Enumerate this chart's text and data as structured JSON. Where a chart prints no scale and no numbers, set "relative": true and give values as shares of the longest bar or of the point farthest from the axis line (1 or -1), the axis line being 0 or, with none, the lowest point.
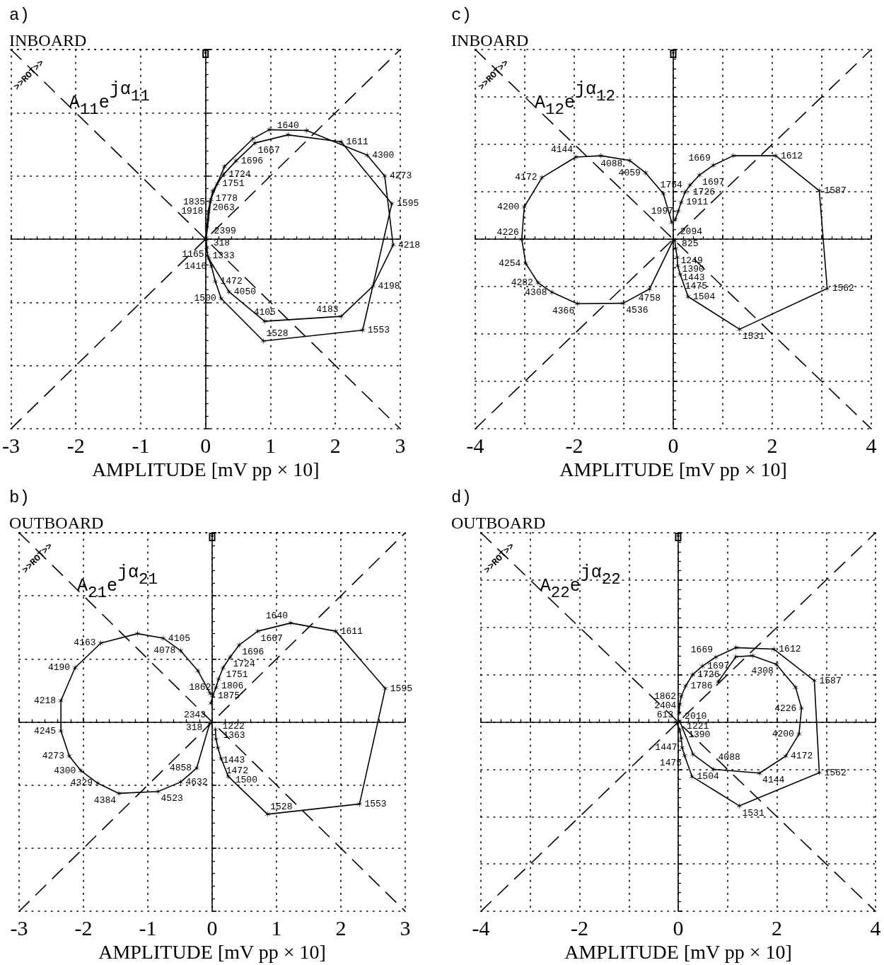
{
  "chart_data": [
    {
      "type": "line",
      "title": "a)",
      "subtitle": "INBOARD",
      "xlabel": "AMPLITUDE [mV pp × 10]",
      "xlim": [
        -3,
        3
      ],
      "xticks": [
        -3,
        -2,
        -1,
        0,
        1,
        2,
        3
      ],
      "relative": true,
      "tick_labels": "x",
      "grid": true,
      "marker": "cross",
      "series": [
        {
          "color": "#000000",
          "x": [
            0.01,
            0.02,
            0.03,
            0.09,
            0.15,
            0.24,
            0.89,
            2.42,
            2.87,
            2.09,
            1.27,
            0.76,
            0.47,
            0.28,
            0.18,
            0.11,
            0.07,
            0.04,
            0.03,
            0.02
          ],
          "values": [
            -0.003,
            -0.043,
            -0.087,
            -0.143,
            -0.223,
            -0.313,
            -0.537,
            -0.48,
            0.187,
            0.513,
            0.55,
            0.507,
            0.413,
            0.343,
            0.293,
            0.253,
            0.197,
            0.147,
            0.103,
            0.063
          ]
        },
        {
          "color": "#000000",
          "x": [
            0.01,
            0.08,
            0.29,
            0.73,
            0.98,
            1.56,
            2.49,
            2.76,
            2.89,
            2.58,
            2.09,
            0.91,
            0.36,
            0.05
          ],
          "values": [
            0.007,
            0.21,
            0.383,
            0.53,
            0.577,
            0.573,
            0.443,
            0.333,
            -0.03,
            -0.247,
            -0.407,
            -0.433,
            -0.277,
            -0.103
          ]
        },
        {
          "color": "#000000",
          "x": [
            -3,
            3
          ],
          "values": [
            -1,
            1
          ],
          "line_style": "dashed",
          "marker": "none"
        },
        {
          "color": "#000000",
          "x": [
            -3,
            3
          ],
          "values": [
            1,
            -1
          ],
          "line_style": "dashed",
          "marker": "none"
        }
      ],
      "annotations": [
        "A$_{11}$e$^{jα}$$_{11}$",
        ">>ROT>>",
        {
          "text": "318",
          "x": 0.01,
          "y": -0.003
        },
        {
          "text": "1165",
          "x": 0.02,
          "y": -0.043
        },
        {
          "text": "1333",
          "x": 0.03,
          "y": -0.087
        },
        {
          "text": "1416",
          "x": 0.09,
          "y": -0.143
        },
        {
          "text": "1472",
          "x": 0.15,
          "y": -0.223
        },
        {
          "text": "1500",
          "x": 0.24,
          "y": -0.313
        },
        {
          "text": "1528",
          "x": 0.89,
          "y": -0.537
        },
        {
          "text": "1553",
          "x": 2.42,
          "y": -0.48
        },
        {
          "text": "1595",
          "x": 2.87,
          "y": 0.187
        },
        {
          "text": "1611",
          "x": 2.09,
          "y": 0.513
        },
        {
          "text": "1640",
          "x": 1.27,
          "y": 0.55
        },
        {
          "text": "1667",
          "x": 0.76,
          "y": 0.507
        },
        {
          "text": "1696",
          "x": 0.47,
          "y": 0.413
        },
        {
          "text": "1724",
          "x": 0.28,
          "y": 0.343
        },
        {
          "text": "1751",
          "x": 0.18,
          "y": 0.293
        },
        {
          "text": "1778",
          "x": 0.11,
          "y": 0.253
        },
        {
          "text": "1835",
          "x": 0.07,
          "y": 0.197
        },
        {
          "text": "1918",
          "x": 0.04,
          "y": 0.147
        },
        {
          "text": "2063",
          "x": 0.03,
          "y": 0.103
        },
        {
          "text": "2399",
          "x": 0.02,
          "y": 0.063
        },
        {
          "text": "4300",
          "x": 2.49,
          "y": 0.443
        },
        {
          "text": "4273",
          "x": 2.76,
          "y": 0.333
        },
        {
          "text": "4218",
          "x": 2.89,
          "y": -0.03
        },
        {
          "text": "4198",
          "x": 2.58,
          "y": -0.247
        },
        {
          "text": "4183",
          "x": 2.09,
          "y": -0.407
        },
        {
          "text": "4105",
          "x": 0.91,
          "y": -0.433
        },
        {
          "text": "4050",
          "x": 0.36,
          "y": -0.277
        }
      ]
    },
    {
      "type": "line",
      "title": "b)",
      "subtitle": "OUTBOARD",
      "xlabel": "AMPLITUDE [mV pp × 10]",
      "xlim": [
        -3,
        3
      ],
      "xticks": [
        -3,
        -2,
        -1,
        0,
        1,
        2,
        3
      ],
      "relative": true,
      "tick_labels": "x",
      "grid": true,
      "marker": "cross",
      "series": [
        {
          "color": "#000000",
          "x": [
            0.05,
            0.06,
            0.09,
            0.14,
            0.25,
            0.86,
            2.29,
            2.69,
            1.92,
            1.22,
            0.71,
            0.42,
            0.28,
            0.17,
            0.1,
            0.06,
            0.01,
            -0.02
          ],
          "values": [
            -0.04,
            -0.09,
            -0.137,
            -0.193,
            -0.287,
            -0.487,
            -0.433,
            0.177,
            0.48,
            0.523,
            0.48,
            0.407,
            0.343,
            0.287,
            0.227,
            0.183,
            0.14,
            0.1
          ]
        },
        {
          "color": "#000000",
          "x": [
            -0.03,
            -0.22,
            -0.49,
            -0.76,
            -1.16,
            -1.73,
            -2.13,
            -2.35,
            -2.35,
            -2.22,
            -2.04,
            -1.78,
            -1.45,
            -0.84,
            -0.49,
            -0.24,
            -0.04
          ],
          "values": [
            0.15,
            0.27,
            0.377,
            0.443,
            0.467,
            0.417,
            0.287,
            0.113,
            -0.047,
            -0.18,
            -0.257,
            -0.323,
            -0.377,
            -0.367,
            -0.317,
            -0.243,
            -0.01
          ]
        },
        {
          "color": "#000000",
          "x": [
            -3,
            3
          ],
          "values": [
            -1,
            1
          ],
          "line_style": "dashed",
          "marker": "none"
        },
        {
          "color": "#000000",
          "x": [
            -3,
            3
          ],
          "values": [
            1,
            -1
          ],
          "line_style": "dashed",
          "marker": "none"
        }
      ],
      "annotations": [
        "A$_{21}$e$^{jα}$$_{21}$",
        ">>ROT>>",
        {
          "text": "1222",
          "x": 0.05,
          "y": -0.04
        },
        {
          "text": "1363",
          "x": 0.06,
          "y": -0.09
        },
        {
          "text": "1443",
          "x": 0.09,
          "y": -0.137
        },
        {
          "text": "1472",
          "x": 0.14,
          "y": -0.193
        },
        {
          "text": "1500",
          "x": 0.25,
          "y": -0.287
        },
        {
          "text": "1528",
          "x": 0.86,
          "y": -0.487
        },
        {
          "text": "1553",
          "x": 2.29,
          "y": -0.433
        },
        {
          "text": "1595",
          "x": 2.69,
          "y": 0.177
        },
        {
          "text": "1611",
          "x": 1.92,
          "y": 0.48
        },
        {
          "text": "1640",
          "x": 1.22,
          "y": 0.523
        },
        {
          "text": "1667",
          "x": 0.71,
          "y": 0.48
        },
        {
          "text": "1696",
          "x": 0.42,
          "y": 0.407
        },
        {
          "text": "1724",
          "x": 0.28,
          "y": 0.343
        },
        {
          "text": "1751",
          "x": 0.17,
          "y": 0.287
        },
        {
          "text": "1806",
          "x": 0.1,
          "y": 0.227
        },
        {
          "text": "1862",
          "x": 0.06,
          "y": 0.183
        },
        {
          "text": "1875",
          "x": 0.01,
          "y": 0.14
        },
        {
          "text": "2343",
          "x": -0.02,
          "y": 0.1
        },
        {
          "text": "4078",
          "x": -0.49,
          "y": 0.377
        },
        {
          "text": "4105",
          "x": -0.76,
          "y": 0.443
        },
        {
          "text": "4163",
          "x": -1.73,
          "y": 0.417
        },
        {
          "text": "4190",
          "x": -2.13,
          "y": 0.287
        },
        {
          "text": "4218",
          "x": -2.35,
          "y": 0.113
        },
        {
          "text": "4245",
          "x": -2.35,
          "y": -0.047
        },
        {
          "text": "4273",
          "x": -2.22,
          "y": -0.18
        },
        {
          "text": "4300",
          "x": -2.04,
          "y": -0.257
        },
        {
          "text": "4329",
          "x": -1.78,
          "y": -0.323
        },
        {
          "text": "4384",
          "x": -1.45,
          "y": -0.377
        },
        {
          "text": "4523",
          "x": -0.84,
          "y": -0.367
        },
        {
          "text": "4632",
          "x": -0.49,
          "y": -0.317
        },
        {
          "text": "4858",
          "x": -0.24,
          "y": -0.243
        },
        {
          "text": "318",
          "x": -0.04,
          "y": -0.01
        }
      ]
    },
    {
      "type": "line",
      "title": "c)",
      "subtitle": "INBOARD",
      "xlabel": "AMPLITUDE [mV pp × 10]",
      "xlim": [
        -4,
        4
      ],
      "xticks": [
        -4,
        {
          "value": -3,
          "label": null
        },
        -2,
        {
          "value": -1,
          "label": null
        },
        0,
        {
          "value": 1,
          "label": null
        },
        2,
        {
          "value": 3,
          "label": null
        },
        4
      ],
      "relative": true,
      "tick_labels": "x",
      "grid": true,
      "marker": "cross",
      "series": [
        {
          "color": "#000000",
          "x": [
            0.03,
            0.05,
            0.08,
            0.09,
            0.14,
            0.3,
            1.34,
            3.11,
            2.95,
            2.07,
            1.21,
            0.81,
            0.53,
            0.34,
            0.24,
            0.16,
            0.1,
            0.04
          ],
          "values": [
            -0.005,
            -0.05,
            -0.095,
            -0.14,
            -0.185,
            -0.303,
            -0.475,
            -0.26,
            0.255,
            0.44,
            0.44,
            0.39,
            0.338,
            0.285,
            0.248,
            0.195,
            0.148,
            0.103
          ]
        },
        {
          "color": "#000000",
          "x": [
            -0.03,
            -0.2,
            -0.56,
            -0.88,
            -1.46,
            -1.97,
            -2.65,
            -3.01,
            -3.06,
            -2.98,
            -2.73,
            -2.45,
            -1.94,
            -1.01,
            -0.48,
            0.0
          ],
          "values": [
            0.088,
            0.24,
            0.35,
            0.415,
            0.44,
            0.433,
            0.325,
            0.17,
            0.0,
            -0.128,
            -0.23,
            -0.28,
            -0.34,
            -0.338,
            -0.263,
            -0.005
          ]
        },
        {
          "color": "#000000",
          "x": [
            -4,
            4
          ],
          "values": [
            -1,
            1
          ],
          "line_style": "dashed",
          "marker": "none"
        },
        {
          "color": "#000000",
          "x": [
            -4,
            4
          ],
          "values": [
            1,
            -1
          ],
          "line_style": "dashed",
          "marker": "none"
        }
      ],
      "annotations": [
        "A$_{12}$e$^{jα}$$_{12}$",
        ">>ROT>>",
        {
          "text": "825",
          "x": 0.03,
          "y": -0.005
        },
        {
          "text": "1249",
          "x": 0.05,
          "y": -0.05
        },
        {
          "text": "1390",
          "x": 0.08,
          "y": -0.095
        },
        {
          "text": "1443",
          "x": 0.09,
          "y": -0.14
        },
        {
          "text": "1475",
          "x": 0.14,
          "y": -0.185
        },
        {
          "text": "1504",
          "x": 0.3,
          "y": -0.303
        },
        {
          "text": "1531",
          "x": 1.34,
          "y": -0.475
        },
        {
          "text": "1562",
          "x": 3.11,
          "y": -0.26
        },
        {
          "text": "1587",
          "x": 2.95,
          "y": 0.255
        },
        {
          "text": "1612",
          "x": 2.07,
          "y": 0.44
        },
        {
          "text": "1669",
          "x": 0.81,
          "y": 0.39
        },
        {
          "text": "1697",
          "x": 0.53,
          "y": 0.338
        },
        {
          "text": "1726",
          "x": 0.34,
          "y": 0.285
        },
        {
          "text": "1754",
          "x": 0.24,
          "y": 0.248
        },
        {
          "text": "1911",
          "x": 0.16,
          "y": 0.195
        },
        {
          "text": "1997",
          "x": 0.1,
          "y": 0.148
        },
        {
          "text": "2094",
          "x": 0.04,
          "y": 0.103
        },
        {
          "text": "4059",
          "x": -0.56,
          "y": 0.35
        },
        {
          "text": "4088",
          "x": -0.88,
          "y": 0.415
        },
        {
          "text": "4144",
          "x": -1.97,
          "y": 0.433
        },
        {
          "text": "4172",
          "x": -2.65,
          "y": 0.325
        },
        {
          "text": "4200",
          "x": -3.01,
          "y": 0.17
        },
        {
          "text": "4226",
          "x": -3.06,
          "y": 0.0
        },
        {
          "text": "4254",
          "x": -2.98,
          "y": -0.128
        },
        {
          "text": "4282",
          "x": -2.73,
          "y": -0.23
        },
        {
          "text": "4308",
          "x": -2.45,
          "y": -0.28
        },
        {
          "text": "4366",
          "x": -1.94,
          "y": -0.34
        },
        {
          "text": "4536",
          "x": -1.01,
          "y": -0.338
        },
        {
          "text": "4758",
          "x": -0.48,
          "y": -0.263
        }
      ]
    },
    {
      "type": "line",
      "title": "d)",
      "subtitle": "OUTBOARD",
      "xlabel": "AMPLITUDE [mV pp × 10]",
      "xlim": [
        -4,
        4
      ],
      "xticks": [
        -4,
        {
          "value": -3,
          "label": null
        },
        -2,
        {
          "value": -1,
          "label": null
        },
        0,
        {
          "value": 1,
          "label": null
        },
        2,
        {
          "value": 3,
          "label": null
        },
        4
      ],
      "relative": true,
      "tick_labels": "x",
      "grid": true,
      "marker": "cross",
      "series": [
        {
          "color": "#000000",
          "x": [
            -0.04,
            0.03,
            0.06,
            0.08,
            0.13,
            0.28,
            1.24,
            2.86,
            2.76,
            1.94,
            1.17,
            0.76,
            0.49,
            0.29,
            0.15,
            0.06,
            0.03,
            0.02
          ],
          "values": [
            0.0,
            -0.04,
            -0.085,
            -0.135,
            -0.178,
            -0.288,
            -0.443,
            -0.268,
            0.218,
            0.385,
            0.393,
            0.343,
            0.295,
            0.25,
            0.19,
            0.135,
            0.093,
            0.048
          ]
        },
        {
          "color": "#000000",
          "x": [
            0.03,
            0.3,
            0.71,
            1.65,
            2.18,
            2.45,
            2.5,
            2.38,
            1.99,
            1.51,
            1.17,
            0.81
          ],
          "values": [
            0.005,
            -0.17,
            -0.25,
            -0.27,
            -0.18,
            -0.063,
            0.073,
            0.183,
            0.305,
            0.35,
            0.345,
            0.213
          ]
        },
        {
          "color": "#000000",
          "x": [
            -4,
            4
          ],
          "values": [
            -1,
            1
          ],
          "line_style": "dashed",
          "marker": "none"
        },
        {
          "color": "#000000",
          "x": [
            -4,
            4
          ],
          "values": [
            1,
            -1
          ],
          "line_style": "dashed",
          "marker": "none"
        }
      ],
      "annotations": [
        "A$_{22}$e$^{jα}$$_{22}$",
        ">>ROT>>",
        {
          "text": "613",
          "x": -0.04,
          "y": 0.0
        },
        {
          "text": "1221",
          "x": 0.03,
          "y": -0.04
        },
        {
          "text": "1390",
          "x": 0.06,
          "y": -0.085
        },
        {
          "text": "1447",
          "x": 0.08,
          "y": -0.135
        },
        {
          "text": "1475",
          "x": 0.13,
          "y": -0.178
        },
        {
          "text": "1504",
          "x": 0.28,
          "y": -0.288
        },
        {
          "text": "1531",
          "x": 1.24,
          "y": -0.443
        },
        {
          "text": "1562",
          "x": 2.86,
          "y": -0.268
        },
        {
          "text": "1587",
          "x": 2.76,
          "y": 0.218
        },
        {
          "text": "1612",
          "x": 1.94,
          "y": 0.385
        },
        {
          "text": "1669",
          "x": 0.76,
          "y": 0.343
        },
        {
          "text": "1697",
          "x": 0.49,
          "y": 0.295
        },
        {
          "text": "1726",
          "x": 0.29,
          "y": 0.25
        },
        {
          "text": "1786",
          "x": 0.15,
          "y": 0.19
        },
        {
          "text": "1862",
          "x": 0.06,
          "y": 0.135
        },
        {
          "text": "2010",
          "x": 0.03,
          "y": 0.093
        },
        {
          "text": "2404",
          "x": 0.02,
          "y": 0.048
        },
        {
          "text": "4088",
          "x": 0.71,
          "y": -0.25
        },
        {
          "text": "4144",
          "x": 1.65,
          "y": -0.27
        },
        {
          "text": "4172",
          "x": 2.18,
          "y": -0.18
        },
        {
          "text": "4200",
          "x": 2.45,
          "y": -0.063
        },
        {
          "text": "4226",
          "x": 2.5,
          "y": 0.073
        },
        {
          "text": "4308",
          "x": 1.99,
          "y": 0.305
        }
      ]
    }
  ]
}
